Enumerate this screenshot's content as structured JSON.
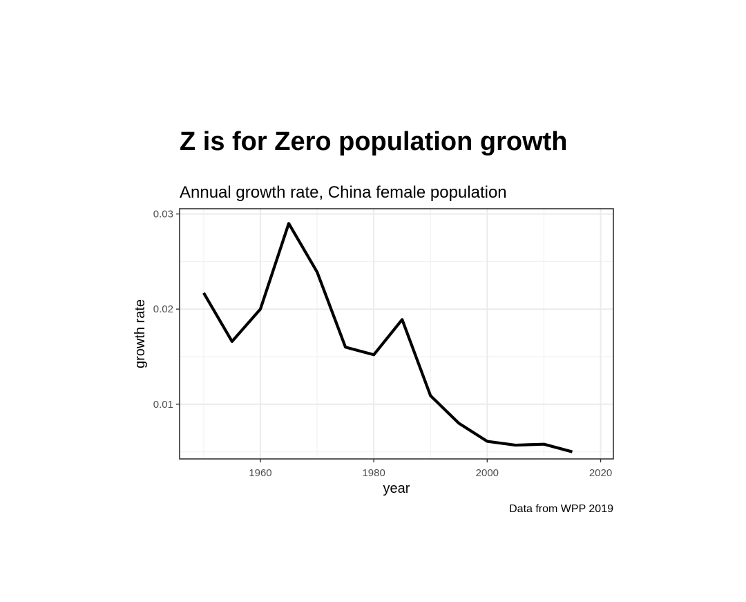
{
  "chart_data": {
    "type": "line",
    "title": "Z is for Zero population growth",
    "subtitle": "Annual growth rate, China female population",
    "xlabel": "year",
    "ylabel": "growth rate",
    "caption": "Data from WPP 2019",
    "xlim": [
      1945.75,
      2022.25
    ],
    "ylim": [
      0.00425,
      0.03055
    ],
    "x_ticks": [
      1960,
      1980,
      2000,
      2020
    ],
    "x_tick_labels": [
      "1960",
      "1980",
      "2000",
      "2020"
    ],
    "y_ticks": [
      0.01,
      0.02,
      0.03
    ],
    "y_tick_labels": [
      "0.01",
      "0.02",
      "0.03"
    ],
    "x_minor_ticks": [
      1950,
      1970,
      1990,
      2010
    ],
    "y_minor_ticks": [
      0.005,
      0.015,
      0.025
    ],
    "grid": true,
    "legend": "none",
    "series": [
      {
        "color": "#000000",
        "x": [
          1950,
          1955,
          1960,
          1965,
          1970,
          1975,
          1980,
          1985,
          1990,
          1995,
          2000,
          2005,
          2010,
          2015
        ],
        "values": [
          0.0217,
          0.0166,
          0.02,
          0.029,
          0.0239,
          0.016,
          0.0152,
          0.0189,
          0.0109,
          0.008,
          0.0061,
          0.0057,
          0.0058,
          0.005
        ]
      }
    ]
  }
}
